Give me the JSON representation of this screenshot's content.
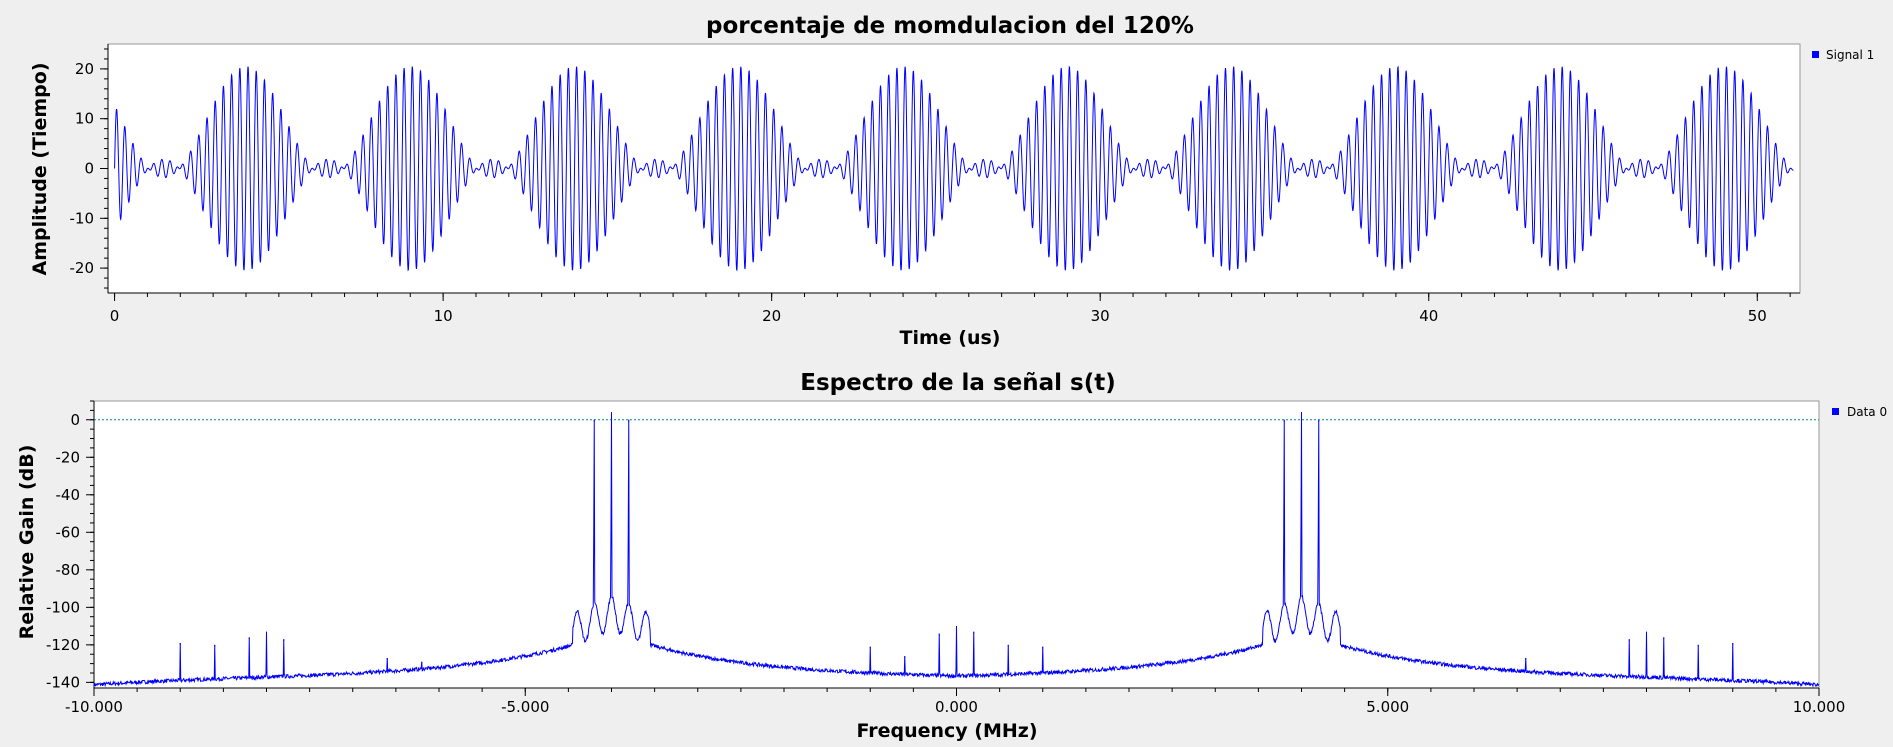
{
  "chart_data": [
    {
      "type": "line",
      "title": "porcentaje de momdulacion del 120%",
      "xlabel": "Time (us)",
      "ylabel": "Amplitude (Tiempo)",
      "xlim": [
        -0.2,
        51.3
      ],
      "ylim": [
        -25,
        25
      ],
      "x_ticks": [
        0,
        10,
        20,
        30,
        40,
        50
      ],
      "x_tick_labels": [
        "0",
        "10",
        "20",
        "30",
        "40",
        "50"
      ],
      "y_ticks": [
        20,
        10,
        0,
        -10,
        -20
      ],
      "y_tick_labels": [
        "20",
        "10",
        "0",
        "-10",
        "-20"
      ],
      "grid": false,
      "legend_position": "top-right",
      "series": [
        {
          "name": "Signal 1",
          "color": "#0000ff",
          "carrier_frequency_MHz": 4,
          "modulating_frequency_MHz": 0.2,
          "modulation_index": 1.2,
          "peak_amplitude": 20.5,
          "t_start_us": 0,
          "t_end_us": 51.1
        }
      ]
    },
    {
      "type": "line",
      "title": "Espectro de la señal s(t)",
      "xlabel": "Frequency (MHz)",
      "ylabel": "Relative Gain (dB)",
      "xlim": [
        -10,
        10
      ],
      "ylim": [
        -143,
        10
      ],
      "x_ticks": [
        -10,
        -5,
        0,
        5,
        10
      ],
      "x_tick_labels": [
        "-10.000",
        "-5.000",
        "0.000",
        "5.000",
        "10.000"
      ],
      "y_ticks": [
        0,
        -20,
        -40,
        -60,
        -80,
        -100,
        -120,
        -140
      ],
      "y_tick_labels": [
        "0",
        "-20",
        "-40",
        "-60",
        "-80",
        "-100",
        "-120",
        "-140"
      ],
      "reference_line_dB": 0,
      "reference_line_color": "#008b8b",
      "grid": false,
      "legend_position": "top-right",
      "series": [
        {
          "name": "Data 0",
          "color": "#0000ff",
          "noise_floor_dB": -140,
          "peaks": [
            {
              "freq_MHz": -4.2,
              "gain_dB": 0
            },
            {
              "freq_MHz": -4.0,
              "gain_dB": 4
            },
            {
              "freq_MHz": -3.8,
              "gain_dB": 0
            },
            {
              "freq_MHz": 3.8,
              "gain_dB": 0
            },
            {
              "freq_MHz": 4.0,
              "gain_dB": 4
            },
            {
              "freq_MHz": 4.2,
              "gain_dB": 0
            }
          ],
          "spurs": [
            {
              "freq_MHz": -9.0,
              "gain_dB": -119
            },
            {
              "freq_MHz": -8.6,
              "gain_dB": -120
            },
            {
              "freq_MHz": -8.2,
              "gain_dB": -116
            },
            {
              "freq_MHz": -8.0,
              "gain_dB": -113
            },
            {
              "freq_MHz": -7.8,
              "gain_dB": -117
            },
            {
              "freq_MHz": -6.6,
              "gain_dB": -127
            },
            {
              "freq_MHz": -6.2,
              "gain_dB": -129
            },
            {
              "freq_MHz": -1.0,
              "gain_dB": -121
            },
            {
              "freq_MHz": -0.6,
              "gain_dB": -126
            },
            {
              "freq_MHz": -0.2,
              "gain_dB": -114
            },
            {
              "freq_MHz": 0.0,
              "gain_dB": -110
            },
            {
              "freq_MHz": 0.2,
              "gain_dB": -113
            },
            {
              "freq_MHz": 0.6,
              "gain_dB": -120
            },
            {
              "freq_MHz": 1.0,
              "gain_dB": -121
            },
            {
              "freq_MHz": 6.6,
              "gain_dB": -127
            },
            {
              "freq_MHz": 7.8,
              "gain_dB": -117
            },
            {
              "freq_MHz": 8.0,
              "gain_dB": -113
            },
            {
              "freq_MHz": 8.2,
              "gain_dB": -116
            },
            {
              "freq_MHz": 8.6,
              "gain_dB": -120
            },
            {
              "freq_MHz": 9.0,
              "gain_dB": -119
            }
          ]
        }
      ]
    }
  ]
}
